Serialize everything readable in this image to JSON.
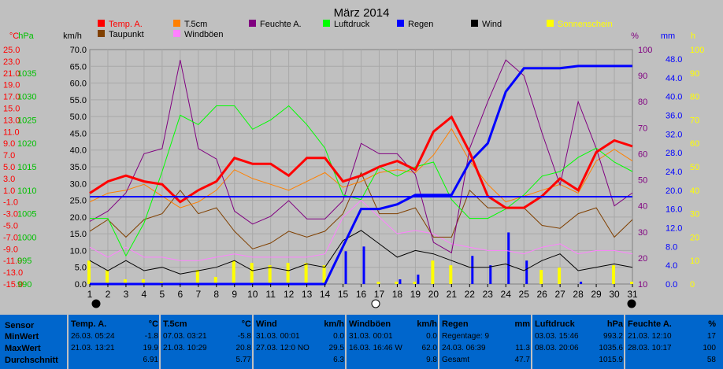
{
  "chart_data": {
    "type": "line",
    "title": "März 2014",
    "x": [
      1,
      2,
      3,
      4,
      5,
      6,
      7,
      8,
      9,
      10,
      11,
      12,
      13,
      14,
      15,
      16,
      17,
      18,
      19,
      20,
      21,
      22,
      23,
      24,
      25,
      26,
      27,
      28,
      29,
      30,
      31
    ],
    "x_ticks": [
      "1",
      "2",
      "3",
      "4",
      "5",
      "6",
      "7",
      "8",
      "9",
      "10",
      "11",
      "12",
      "13",
      "14",
      "15",
      "16",
      "17",
      "18",
      "19",
      "20",
      "21",
      "22",
      "23",
      "24",
      "25",
      "26",
      "27",
      "28",
      "29",
      "30",
      "31"
    ],
    "axes": [
      {
        "unit": "°C",
        "color": "#ff0000",
        "side": "left",
        "min": -15,
        "max": 25,
        "ticks": [
          "25.0",
          "23.0",
          "21.0",
          "19.0",
          "17.0",
          "15.0",
          "13.0",
          "11.0",
          "9.0",
          "7.0",
          "5.0",
          "3.0",
          "1.0",
          "-1.0",
          "-3.0",
          "-5.0",
          "-7.0",
          "-9.0",
          "-11.0",
          "-13.0",
          "-15.0"
        ]
      },
      {
        "unit": "hPa",
        "color": "#00c000",
        "side": "left",
        "min": 990,
        "max": 1040,
        "ticks": [
          "1035",
          "1030",
          "1025",
          "1020",
          "1015",
          "1010",
          "1005",
          "1000",
          "995",
          "990"
        ]
      },
      {
        "unit": "km/h",
        "color": "#000000",
        "side": "left",
        "min": 0,
        "max": 70,
        "ticks": [
          "70.0",
          "65.0",
          "60.0",
          "55.0",
          "50.0",
          "45.0",
          "40.0",
          "35.0",
          "30.0",
          "25.0",
          "20.0",
          "15.0",
          "10.0",
          "5.0",
          "0.0"
        ]
      },
      {
        "unit": "%",
        "color": "#800080",
        "side": "right",
        "min": 10,
        "max": 100,
        "ticks": [
          "100",
          "90",
          "80",
          "70",
          "60",
          "50",
          "40",
          "30",
          "20",
          "10"
        ]
      },
      {
        "unit": "mm",
        "color": "#0000ff",
        "side": "right",
        "min": 0,
        "max": 50,
        "ticks": [
          "48.0",
          "44.0",
          "40.0",
          "36.0",
          "32.0",
          "28.0",
          "24.0",
          "20.0",
          "16.0",
          "12.0",
          "8.0",
          "4.0",
          "0.0"
        ]
      },
      {
        "unit": "h",
        "color": "#ffff00",
        "side": "right",
        "min": 0,
        "max": 100,
        "ticks": [
          "100",
          "90",
          "80",
          "70",
          "60",
          "50",
          "40",
          "30",
          "20",
          "10",
          "0"
        ]
      }
    ],
    "series": [
      {
        "name": "Temp. A.",
        "color": "#ff0000",
        "axis": "°C",
        "values": [
          0.5,
          2.5,
          3.5,
          2.5,
          2.0,
          -1.0,
          1.0,
          2.5,
          6.5,
          5.5,
          5.5,
          3.5,
          6.5,
          6.5,
          2.5,
          3.5,
          5.0,
          6.0,
          4.5,
          11.0,
          13.5,
          7.5,
          0.0,
          -2.0,
          -2.0,
          0.0,
          3.0,
          1.0,
          7.5,
          9.5,
          8.5
        ]
      },
      {
        "name": "T.5cm",
        "color": "#ff8000",
        "axis": "°C",
        "values": [
          -1.0,
          0.5,
          1.0,
          2.0,
          0.0,
          -2.0,
          -1.0,
          1.0,
          4.5,
          3.0,
          2.0,
          1.0,
          2.5,
          4.0,
          1.5,
          2.5,
          4.0,
          4.5,
          4.0,
          7.0,
          11.5,
          6.0,
          2.0,
          -1.0,
          0.0,
          1.0,
          2.0,
          0.5,
          6.0,
          8.0,
          6.0
        ]
      },
      {
        "name": "Feuchte A.",
        "color": "#800080",
        "axis": "%",
        "values": [
          34,
          38,
          45,
          60,
          62,
          96,
          62,
          58,
          38,
          33,
          36,
          42,
          35,
          35,
          42,
          64,
          60,
          60,
          52,
          26,
          22,
          62,
          80,
          96,
          90,
          68,
          48,
          80,
          62,
          40,
          45
        ]
      },
      {
        "name": "Luftdruck",
        "color": "#00ff00",
        "axis": "hPa",
        "values": [
          1004,
          1004,
          996,
          1003,
          1014,
          1026,
          1024,
          1028,
          1028,
          1023,
          1025,
          1028,
          1024,
          1019,
          1009,
          1008,
          1015,
          1013,
          1015,
          1016,
          1008,
          1004,
          1004,
          1006,
          1009,
          1013,
          1014,
          1017,
          1019,
          1016,
          1014
        ]
      },
      {
        "name": "Regen",
        "color": "#0000ff",
        "axis": "mm",
        "values": [
          0,
          0,
          0,
          0,
          0,
          0,
          0,
          0,
          0,
          0,
          0,
          0,
          0,
          0,
          8,
          16,
          16,
          17,
          19,
          19,
          19,
          26,
          30,
          41,
          46,
          46,
          46,
          46.5,
          46.5,
          46.5,
          46.5
        ]
      },
      {
        "name": "Wind",
        "color": "#000000",
        "axis": "km/h",
        "values": [
          7,
          4,
          7,
          4,
          5,
          3,
          4,
          5,
          7,
          4,
          5,
          4,
          6,
          5,
          13,
          16,
          12,
          8,
          10,
          9,
          7,
          5,
          5,
          6,
          4,
          7,
          9,
          4,
          5,
          6,
          5
        ]
      },
      {
        "name": "Taupunkt",
        "color": "#804000",
        "axis": "°C",
        "values": [
          -6.0,
          -4.0,
          -7.0,
          -4.0,
          -3.0,
          1.0,
          -3.0,
          -2.0,
          -6.0,
          -9.0,
          -8.0,
          -6.0,
          -7.0,
          -6.0,
          -3.0,
          4.0,
          -3.0,
          -3.0,
          -2.0,
          -7.0,
          -7.0,
          1.0,
          -2.0,
          -2.0,
          -2.0,
          -5.0,
          -5.5,
          -3.0,
          -2.0,
          -7.0,
          -4.0
        ]
      },
      {
        "name": "Windböen",
        "color": "#ff80ff",
        "axis": "km/h",
        "values": [
          11,
          8,
          11,
          8,
          8,
          7,
          7,
          8,
          9,
          8,
          8,
          8,
          8,
          9,
          20,
          25,
          20,
          15,
          16,
          15,
          12,
          11,
          10,
          10,
          9,
          11,
          12,
          9,
          10,
          10,
          9
        ]
      }
    ],
    "bars": [
      {
        "name": "Sonnenschein",
        "color": "#ffff00",
        "axis": "h",
        "values": [
          10,
          6,
          2,
          2,
          1,
          0,
          6,
          3,
          10,
          9,
          8,
          9,
          9,
          8,
          0,
          0,
          1,
          1,
          1,
          10,
          8,
          0,
          0,
          0,
          0,
          6,
          7,
          0,
          0,
          8,
          1
        ]
      },
      {
        "name": "Regen",
        "color": "#0000ff",
        "axis": "mm",
        "values": [
          0,
          0,
          0,
          0,
          0,
          0,
          0,
          0,
          0,
          0,
          0,
          0,
          0,
          0,
          7,
          8,
          0,
          1,
          2,
          0,
          0,
          6,
          4,
          11,
          5,
          0,
          0,
          0.5,
          0,
          0,
          0
        ]
      }
    ],
    "legend": [
      {
        "label": "Temp. A.",
        "color": "#ff0000"
      },
      {
        "label": "T.5cm",
        "color": "#ff8000"
      },
      {
        "label": "Feuchte A.",
        "color": "#800080"
      },
      {
        "label": "Luftdruck",
        "color": "#00ff00"
      },
      {
        "label": "Regen",
        "color": "#0000ff"
      },
      {
        "label": "Wind",
        "color": "#000000"
      },
      {
        "label": "Sonnenschein",
        "color": "#ffff00"
      },
      {
        "label": "Taupunkt",
        "color": "#804000"
      },
      {
        "label": "Windböen",
        "color": "#ff80ff"
      }
    ],
    "grid": true
  },
  "stats": {
    "labels": {
      "sensor": "Sensor",
      "min": "MinWert",
      "max": "MaxWert",
      "avg": "Durchschnitt"
    },
    "columns": [
      {
        "name": "Temp. A.",
        "unit": "°C",
        "rows": [
          [
            "26.03.  05:24",
            "-1.8"
          ],
          [
            "21.03.  13:21",
            "19.9"
          ],
          [
            "",
            "6.91"
          ]
        ]
      },
      {
        "name": "T.5cm",
        "unit": "°C",
        "rows": [
          [
            "07.03.  03:21",
            "-5.8"
          ],
          [
            "21.03.  10:29",
            "20.8"
          ],
          [
            "",
            "5.77"
          ]
        ]
      },
      {
        "name": "Wind",
        "unit": "km/h",
        "rows": [
          [
            "31.03.  00:01",
            "0.0"
          ],
          [
            "27.03.  12:0 NO",
            "29.5"
          ],
          [
            "",
            "6.3"
          ]
        ]
      },
      {
        "name": "Windböen",
        "unit": "km/h",
        "rows": [
          [
            "31.03.  00:01",
            "0.0"
          ],
          [
            "16.03.  16:46  W",
            "62.0"
          ],
          [
            "",
            "9.8"
          ]
        ]
      },
      {
        "name": "Regen",
        "unit": "mm",
        "rows": [
          [
            "Regentage: 9",
            ""
          ],
          [
            "24.03.  06:39",
            "11.3"
          ],
          [
            "Gesamt",
            "47.7"
          ]
        ]
      },
      {
        "name": "Luftdruck",
        "unit": "hPa",
        "rows": [
          [
            "03.03.  15:46",
            "993.2"
          ],
          [
            "08.03.  20:06",
            "1035.6"
          ],
          [
            "",
            "1015.9"
          ]
        ]
      },
      {
        "name": "Feuchte A.",
        "unit": "%",
        "rows": [
          [
            "21.03.  12:10",
            "17"
          ],
          [
            "28.03.  10:17",
            "100"
          ],
          [
            "",
            "58"
          ]
        ]
      }
    ]
  }
}
